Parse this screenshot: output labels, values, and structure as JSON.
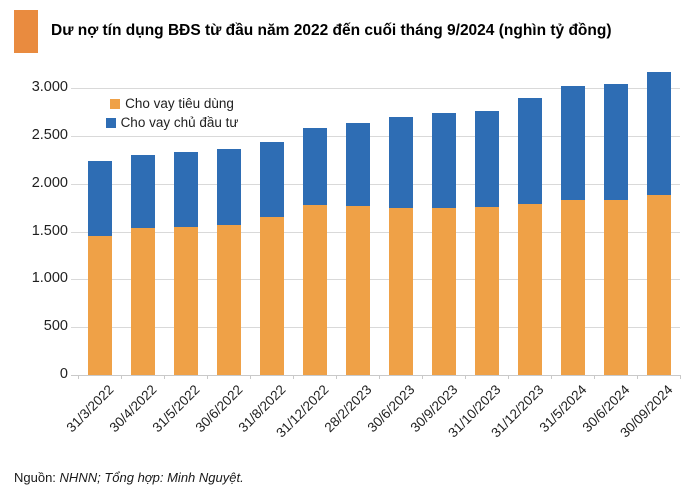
{
  "title": {
    "text": "Dư nợ tín dụng BĐS từ đầu năm 2022 đến cuối tháng 9/2024 (nghìn tỷ đồng)"
  },
  "source": {
    "prefix": "Nguồn: ",
    "detail": "NHNN; Tổng hợp: Minh Nguyệt."
  },
  "colors": {
    "title_marker": "#e98b3f",
    "consumer_orange": "#efa147",
    "developer_blue": "#2e6db4",
    "gridline": "#d9d9d9"
  },
  "chart_data": {
    "type": "bar",
    "stacked": true,
    "title": "Dư nợ tín dụng BĐS từ đầu năm 2022 đến cuối tháng 9/2024 (nghìn tỷ đồng)",
    "xlabel": "",
    "ylabel": "",
    "ylim": [
      0,
      3000
    ],
    "grid": true,
    "legend_position": "top-left-inside",
    "categories": [
      "31/3/2022",
      "30/4/2022",
      "31/5/2022",
      "30/6/2022",
      "31/8/2022",
      "31/12/2022",
      "28/2/2023",
      "30/6/2023",
      "30/9/2023",
      "31/10/2023",
      "31/12/2023",
      "31/5/2024",
      "30/6/2024",
      "30/09/2024"
    ],
    "series": [
      {
        "name": "Cho vay tiêu dùng",
        "color": "#efa147",
        "values": [
          1450,
          1540,
          1550,
          1570,
          1650,
          1780,
          1770,
          1750,
          1750,
          1760,
          1790,
          1830,
          1830,
          1880
        ]
      },
      {
        "name": "Cho vay chủ đầu tư",
        "color": "#2e6db4",
        "values": [
          790,
          760,
          780,
          790,
          790,
          800,
          860,
          950,
          990,
          1000,
          1110,
          1190,
          1210,
          1290
        ]
      }
    ],
    "totals": [
      2240,
      2300,
      2330,
      2360,
      2440,
      2580,
      2630,
      2700,
      2740,
      2760,
      2900,
      3020,
      3040,
      3170
    ],
    "yticks": [
      {
        "value": 0,
        "label": "0"
      },
      {
        "value": 500,
        "label": "500"
      },
      {
        "value": 1000,
        "label": "1.000"
      },
      {
        "value": 1500,
        "label": "1.500"
      },
      {
        "value": 2000,
        "label": "2.000"
      },
      {
        "value": 2500,
        "label": "2.500"
      },
      {
        "value": 3000,
        "label": "3.000"
      }
    ]
  }
}
